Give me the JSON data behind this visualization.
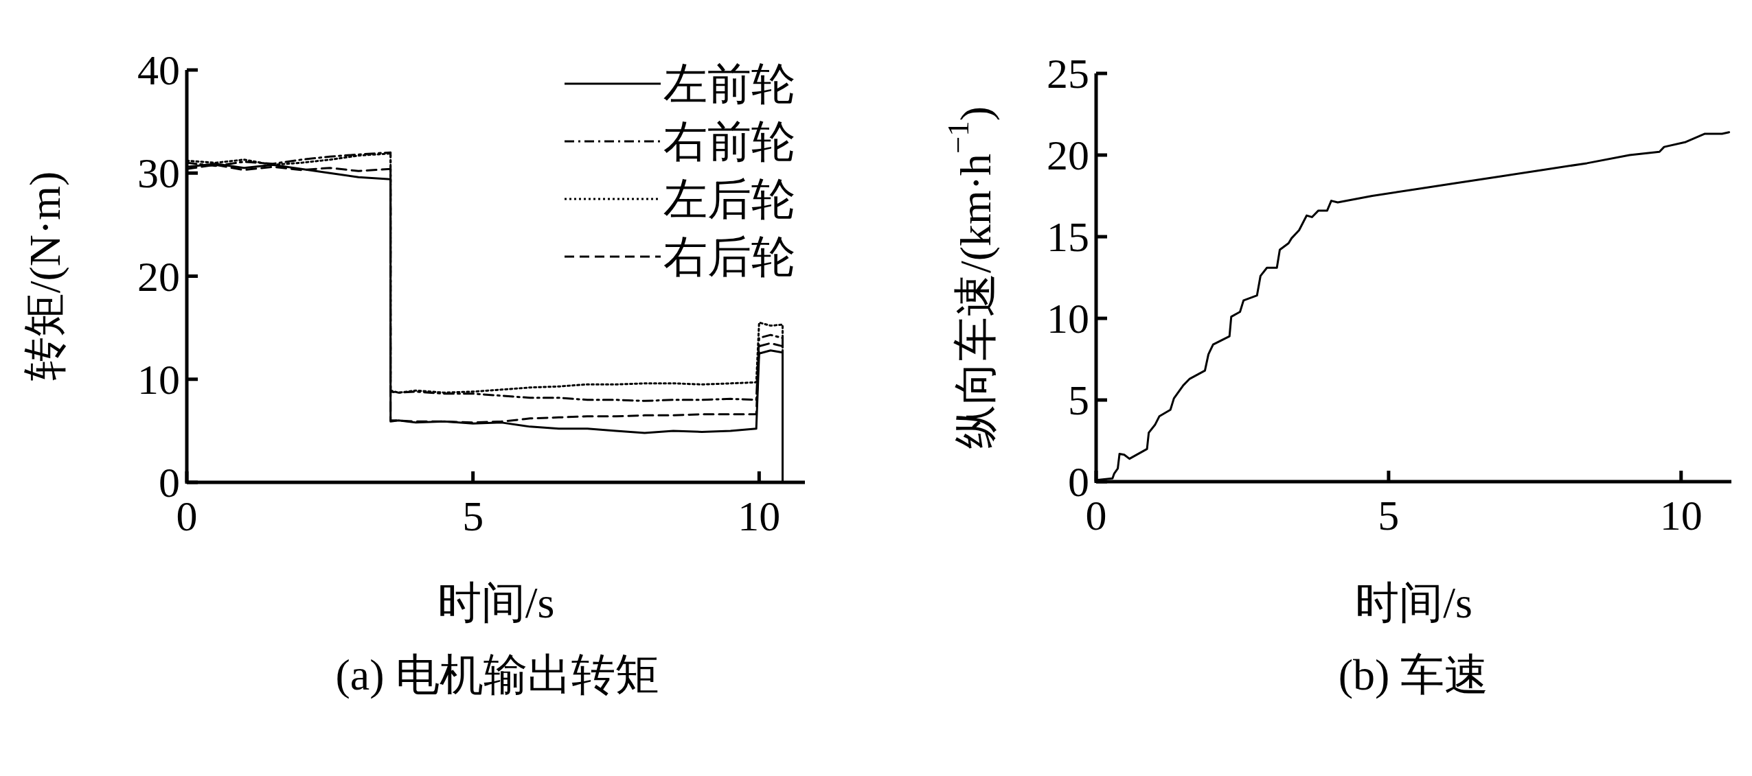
{
  "chart_data": [
    {
      "type": "line",
      "xlabel": "时间/s",
      "ylabel": "转矩/(N·m)",
      "annotations": [
        "(a) 电机输出转矩"
      ],
      "xlim": [
        0,
        10.8
      ],
      "ylim": [
        0,
        40
      ],
      "xticks": [
        0,
        5,
        10
      ],
      "yticks": [
        0,
        10,
        20,
        30,
        40
      ],
      "legend": "top right",
      "series": [
        {
          "name": "左前轮",
          "color": "#000000",
          "line_style": "solid",
          "x": [
            0,
            0.5,
            1,
            1.5,
            2,
            2.5,
            3,
            3.56,
            3.56,
            3.7,
            4,
            4.5,
            5,
            5.5,
            6,
            6.5,
            7,
            7.5,
            8,
            8.5,
            9,
            9.5,
            9.95,
            10.0,
            10.2,
            10.41,
            10.41
          ],
          "values": [
            30.6,
            30.9,
            30.5,
            30.8,
            30.4,
            30.0,
            29.6,
            29.4,
            5.9,
            6.0,
            5.8,
            5.9,
            5.7,
            5.8,
            5.4,
            5.2,
            5.2,
            5.0,
            4.8,
            5.0,
            4.9,
            5.0,
            5.2,
            12.5,
            12.8,
            12.6,
            0
          ]
        },
        {
          "name": "右前轮",
          "color": "#000000",
          "line_style": "dashdot",
          "x": [
            0,
            0.5,
            1,
            1.5,
            2,
            2.5,
            3,
            3.56,
            3.56,
            3.7,
            4,
            4.5,
            5,
            5.5,
            6,
            6.5,
            7,
            7.5,
            8,
            8.5,
            9,
            9.5,
            9.95,
            10.0,
            10.2,
            10.41,
            10.41
          ],
          "values": [
            31.0,
            30.7,
            31.1,
            30.9,
            31.3,
            31.6,
            31.8,
            32.0,
            8.8,
            8.7,
            8.8,
            8.6,
            8.6,
            8.4,
            8.2,
            8.2,
            8.0,
            8.0,
            7.9,
            8.0,
            8.0,
            8.1,
            8.0,
            14.0,
            14.3,
            14.0,
            0
          ]
        },
        {
          "name": "左后轮",
          "color": "#000000",
          "line_style": "dotted",
          "x": [
            0,
            0.5,
            1,
            1.5,
            2,
            2.5,
            3,
            3.56,
            3.56,
            3.7,
            4,
            4.5,
            5,
            5.5,
            6,
            6.5,
            7,
            7.5,
            8,
            8.5,
            9,
            9.5,
            9.95,
            10.0,
            10.2,
            10.41,
            10.41
          ],
          "values": [
            31.2,
            31.0,
            31.3,
            30.8,
            31.0,
            31.3,
            31.7,
            31.9,
            8.9,
            8.7,
            8.9,
            8.7,
            8.8,
            9.0,
            9.2,
            9.3,
            9.5,
            9.5,
            9.6,
            9.6,
            9.5,
            9.6,
            9.7,
            15.5,
            15.2,
            15.3,
            0
          ]
        },
        {
          "name": "右后轮",
          "color": "#000000",
          "line_style": "dashed",
          "x": [
            0,
            0.5,
            1,
            1.5,
            2,
            2.5,
            3,
            3.56,
            3.56,
            3.7,
            4,
            4.5,
            5,
            5.5,
            6,
            6.5,
            7,
            7.5,
            8,
            8.5,
            9,
            9.5,
            9.95,
            10.0,
            10.2,
            10.41,
            10.41
          ],
          "values": [
            30.4,
            30.8,
            30.3,
            30.6,
            30.3,
            30.5,
            30.2,
            30.4,
            6.0,
            6.0,
            5.9,
            5.9,
            5.8,
            5.9,
            6.2,
            6.3,
            6.4,
            6.4,
            6.5,
            6.5,
            6.6,
            6.6,
            6.6,
            13.2,
            13.5,
            13.2,
            0
          ]
        }
      ]
    },
    {
      "type": "line",
      "xlabel": "时间/s",
      "ylabel": "纵向车速/(km·h$^{−1}$)",
      "annotations": [
        "(b) 车速"
      ],
      "xlim": [
        0,
        10.86
      ],
      "ylim": [
        0,
        25
      ],
      "xticks": [
        0,
        5,
        10
      ],
      "yticks": [
        0,
        5,
        10,
        15,
        20,
        25
      ],
      "series": [
        {
          "color": "#000000",
          "line_style": "solid",
          "x": [
            0,
            0.28,
            0.31,
            0.37,
            0.4,
            0.48,
            0.57,
            0.87,
            0.9,
            1.01,
            1.08,
            1.27,
            1.33,
            1.49,
            1.6,
            1.86,
            1.92,
            2.0,
            2.28,
            2.31,
            2.46,
            2.52,
            2.75,
            2.81,
            2.92,
            3.09,
            3.14,
            3.29,
            3.34,
            3.47,
            3.6,
            3.69,
            3.8,
            3.95,
            4.02,
            4.13,
            4.72,
            5.45,
            6.18,
            6.92,
            7.65,
            8.39,
            9.12,
            9.63,
            9.71,
            10.08,
            10.4,
            10.7,
            10.82
          ],
          "values": [
            0.1,
            0.2,
            0.5,
            0.8,
            1.7,
            1.65,
            1.4,
            2.0,
            3.0,
            3.5,
            4.0,
            4.4,
            5.1,
            5.9,
            6.3,
            6.8,
            7.8,
            8.4,
            8.9,
            10.1,
            10.4,
            11.1,
            11.4,
            12.6,
            13.1,
            13.1,
            14.2,
            14.6,
            14.9,
            15.4,
            16.3,
            16.2,
            16.6,
            16.6,
            17.2,
            17.1,
            17.5,
            17.9,
            18.3,
            18.7,
            19.1,
            19.5,
            20.0,
            20.2,
            20.5,
            20.8,
            21.3,
            21.3,
            21.4
          ]
        }
      ]
    }
  ]
}
